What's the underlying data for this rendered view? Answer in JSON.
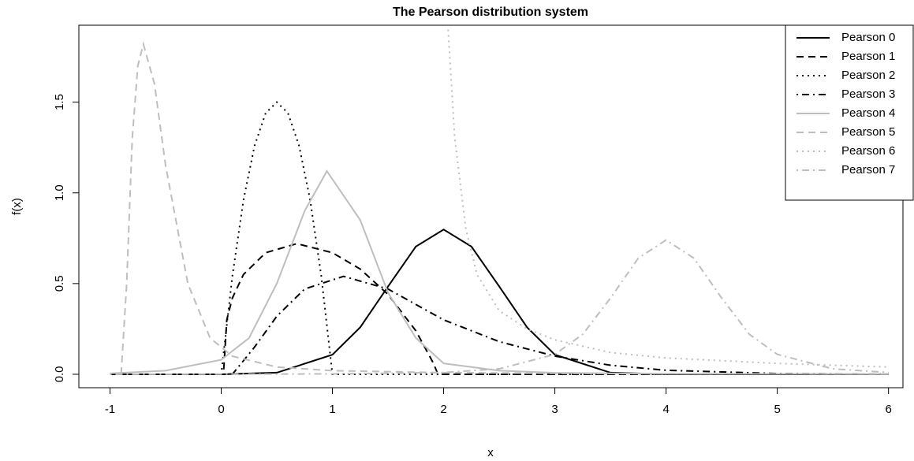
{
  "chart_data": {
    "type": "line",
    "title": "The Pearson distribution system",
    "x_label": "x",
    "y_label": "f(x)",
    "xlim": [
      -1.28,
      6.13
    ],
    "ylim": [
      -0.074,
      1.924
    ],
    "xticks": [
      -1,
      0,
      1,
      2,
      3,
      4,
      5,
      6
    ],
    "yticks": [
      {
        "value": 0,
        "label": "0.0"
      },
      {
        "value": 0.5,
        "label": "0.5"
      },
      {
        "value": 1,
        "label": "1.0"
      },
      {
        "value": 1.5,
        "label": "1.5"
      }
    ],
    "legend_position": "topright",
    "series": [
      {
        "name": "Pearson 0",
        "color": "#000000",
        "dash": "solid",
        "x": [
          -1,
          0,
          0.5,
          1,
          1.25,
          1.5,
          1.75,
          2,
          2.25,
          2.5,
          2.75,
          3,
          3.5,
          4,
          5,
          6
        ],
        "values": [
          0,
          0.0001,
          0.0089,
          0.108,
          0.259,
          0.484,
          0.704,
          0.798,
          0.704,
          0.484,
          0.259,
          0.108,
          0.0089,
          0.0003,
          0,
          0
        ]
      },
      {
        "name": "Pearson 1",
        "color": "#000000",
        "dash": "dashed",
        "x": [
          -1,
          0.02,
          0.05,
          0.1,
          0.2,
          0.4,
          0.68,
          1,
          1.25,
          1.5,
          1.75,
          1.9,
          1.95,
          6
        ],
        "values": [
          0,
          0,
          0.3,
          0.42,
          0.55,
          0.67,
          0.72,
          0.67,
          0.58,
          0.44,
          0.24,
          0.07,
          0,
          0
        ]
      },
      {
        "name": "Pearson 2",
        "color": "#000000",
        "dash": "dotted",
        "x": [
          -1,
          0,
          0.1,
          0.2,
          0.3,
          0.4,
          0.5,
          0.6,
          0.7,
          0.8,
          0.9,
          1,
          6
        ],
        "values": [
          0,
          0,
          0.54,
          0.96,
          1.26,
          1.44,
          1.5,
          1.44,
          1.26,
          0.96,
          0.54,
          0,
          0
        ]
      },
      {
        "name": "Pearson 3",
        "color": "#000000",
        "dash": "dotdash",
        "x": [
          -1,
          0.1,
          0.3,
          0.5,
          0.75,
          1.1,
          1.5,
          2,
          2.5,
          3,
          3.5,
          4,
          5,
          6
        ],
        "values": [
          0,
          0,
          0.15,
          0.32,
          0.47,
          0.54,
          0.47,
          0.3,
          0.18,
          0.1,
          0.05,
          0.022,
          0.004,
          0.001
        ]
      },
      {
        "name": "Pearson 4",
        "color": "#bebebe",
        "dash": "solid",
        "x": [
          -1,
          -0.5,
          0,
          0.25,
          0.5,
          0.75,
          0.95,
          1.25,
          1.5,
          1.75,
          2,
          2.5,
          3,
          4,
          6
        ],
        "values": [
          0.005,
          0.02,
          0.08,
          0.2,
          0.5,
          0.9,
          1.12,
          0.85,
          0.45,
          0.2,
          0.06,
          0.02,
          0.008,
          0.003,
          0.001
        ]
      },
      {
        "name": "Pearson 5",
        "color": "#bebebe",
        "dash": "dashed",
        "x": [
          -0.9,
          -0.85,
          -0.8,
          -0.75,
          -0.7,
          -0.6,
          -0.5,
          -0.3,
          -0.1,
          0.1,
          0.5,
          1,
          2,
          3,
          4,
          6
        ],
        "values": [
          0,
          0.5,
          1.3,
          1.7,
          1.82,
          1.6,
          1.15,
          0.5,
          0.2,
          0.1,
          0.04,
          0.02,
          0.009,
          0.005,
          0.003,
          0.001
        ]
      },
      {
        "name": "Pearson 6",
        "color": "#bebebe",
        "dash": "dotted",
        "x": [
          2.04,
          2.1,
          2.2,
          2.3,
          2.5,
          2.75,
          3,
          3.5,
          4,
          5,
          6
        ],
        "values": [
          1.9,
          1.3,
          0.8,
          0.55,
          0.35,
          0.25,
          0.19,
          0.12,
          0.09,
          0.06,
          0.04
        ]
      },
      {
        "name": "Pearson 7",
        "color": "#bebebe",
        "dash": "dotdash",
        "x": [
          -1,
          1,
          2,
          2.5,
          3,
          3.25,
          3.5,
          3.75,
          4,
          4.25,
          4.5,
          4.75,
          5,
          5.5,
          6
        ],
        "values": [
          0,
          0.002,
          0.01,
          0.03,
          0.11,
          0.22,
          0.42,
          0.64,
          0.74,
          0.64,
          0.42,
          0.22,
          0.11,
          0.03,
          0.01
        ]
      }
    ]
  }
}
